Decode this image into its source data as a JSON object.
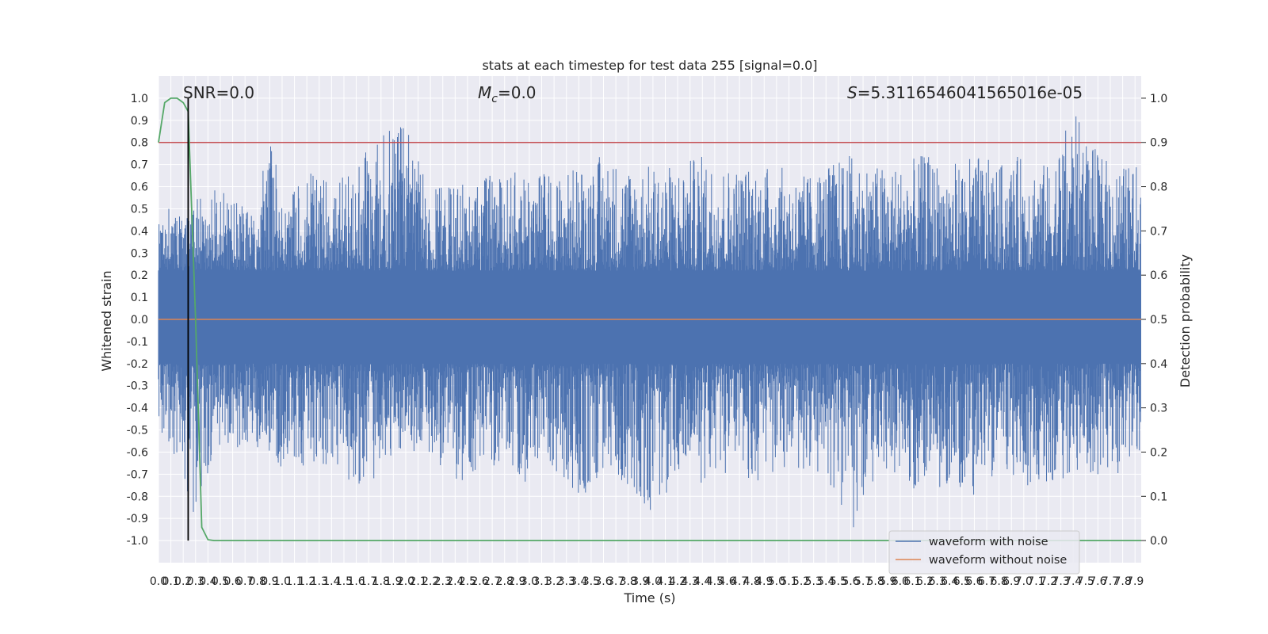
{
  "chart_data": {
    "type": "line",
    "title": "stats at each timestep for test data 255 [signal=0.0]",
    "xlabel": "Time (s)",
    "ylabel": "Whitened strain",
    "y2label": "Detection probability",
    "xlim": [
      0.0,
      7.95
    ],
    "ylim": [
      -1.1,
      1.1
    ],
    "y2lim": [
      -0.05,
      1.05
    ],
    "x_ticks": [
      "0.0",
      "0.1",
      "0.2",
      "0.3",
      "0.4",
      "0.5",
      "0.6",
      "0.7",
      "0.8",
      "0.9",
      "1.0",
      "1.1",
      "1.2",
      "1.3",
      "1.4",
      "1.5",
      "1.6",
      "1.7",
      "1.8",
      "1.9",
      "2.0",
      "2.1",
      "2.2",
      "2.3",
      "2.4",
      "2.5",
      "2.6",
      "2.7",
      "2.8",
      "2.9",
      "3.0",
      "3.1",
      "3.2",
      "3.3",
      "3.4",
      "3.5",
      "3.6",
      "3.7",
      "3.8",
      "3.9",
      "4.0",
      "4.1",
      "4.2",
      "4.3",
      "4.4",
      "4.5",
      "4.6",
      "4.7",
      "4.8",
      "4.9",
      "5.0",
      "5.1",
      "5.2",
      "5.3",
      "5.4",
      "5.5",
      "5.6",
      "5.7",
      "5.8",
      "5.9",
      "6.0",
      "6.1",
      "6.2",
      "6.3",
      "6.4",
      "6.5",
      "6.6",
      "6.7",
      "6.8",
      "6.9",
      "7.0",
      "7.1",
      "7.2",
      "7.3",
      "7.4",
      "7.5",
      "7.6",
      "7.7",
      "7.8",
      "7.9"
    ],
    "y_ticks": [
      "-1.0",
      "-0.9",
      "-0.8",
      "-0.7",
      "-0.6",
      "-0.5",
      "-0.4",
      "-0.3",
      "-0.2",
      "-0.1",
      "0.0",
      "0.1",
      "0.2",
      "0.3",
      "0.4",
      "0.5",
      "0.6",
      "0.7",
      "0.8",
      "0.9",
      "1.0"
    ],
    "y2_ticks": [
      "0.0",
      "0.1",
      "0.2",
      "0.3",
      "0.4",
      "0.5",
      "0.6",
      "0.7",
      "0.8",
      "0.9",
      "1.0"
    ],
    "annotations": {
      "snr": "SNR=0.0",
      "mc_symbol": "M",
      "mc_sub": "c",
      "mc_value": "=0.0",
      "s_symbol": "S",
      "s_value": "=5.3116546041565016e-05"
    },
    "series": [
      {
        "name": "waveform with noise",
        "color": "#4c72b0",
        "note": "dense noise trace, envelope approximated",
        "envelope_x": [
          0.0,
          0.1,
          0.2,
          0.3,
          0.4,
          0.5,
          0.6,
          0.7,
          0.8,
          0.9,
          1.0,
          1.2,
          1.4,
          1.6,
          1.8,
          2.0,
          2.2,
          2.4,
          2.6,
          2.8,
          3.0,
          3.2,
          3.4,
          3.6,
          3.8,
          4.0,
          4.2,
          4.4,
          4.6,
          4.8,
          5.0,
          5.2,
          5.4,
          5.6,
          5.8,
          6.0,
          6.2,
          6.4,
          6.6,
          6.8,
          7.0,
          7.2,
          7.4,
          7.6,
          7.8,
          7.95
        ],
        "envelope_upper": [
          0.45,
          0.55,
          0.5,
          0.55,
          0.6,
          0.65,
          0.55,
          0.5,
          0.45,
          0.95,
          0.5,
          0.7,
          0.6,
          0.7,
          0.85,
          0.88,
          0.6,
          0.6,
          0.65,
          0.65,
          0.7,
          0.65,
          0.7,
          0.75,
          0.7,
          0.7,
          0.7,
          0.75,
          0.7,
          0.7,
          0.7,
          0.65,
          0.7,
          0.75,
          0.7,
          0.7,
          0.75,
          0.7,
          0.75,
          0.7,
          0.75,
          0.7,
          0.95,
          0.75,
          0.7,
          0.7
        ],
        "envelope_lower": [
          -0.5,
          -0.6,
          -0.7,
          -0.95,
          -0.7,
          -0.6,
          -0.6,
          -0.55,
          -0.6,
          -0.6,
          -0.75,
          -0.65,
          -0.7,
          -0.8,
          -0.7,
          -0.6,
          -0.6,
          -0.75,
          -0.7,
          -0.7,
          -0.75,
          -0.7,
          -0.85,
          -0.7,
          -0.75,
          -0.9,
          -0.7,
          -0.75,
          -0.7,
          -0.75,
          -0.7,
          -0.7,
          -0.7,
          -1.0,
          -0.7,
          -0.75,
          -0.8,
          -0.75,
          -0.8,
          -0.7,
          -0.75,
          -0.75,
          -0.7,
          -0.7,
          -0.7,
          -0.6
        ]
      },
      {
        "name": "waveform without noise",
        "color": "#dd8452",
        "x": [
          0.0,
          7.95
        ],
        "y": [
          0.0,
          0.0
        ]
      },
      {
        "name": "",
        "axis": "right",
        "color": "#55a868",
        "x": [
          0.0,
          0.05,
          0.1,
          0.15,
          0.2,
          0.24,
          0.3,
          0.35,
          0.4,
          0.45,
          0.5,
          7.95
        ],
        "y": [
          0.9,
          0.99,
          1.0,
          1.0,
          0.99,
          0.97,
          0.5,
          0.03,
          0.002,
          0.0,
          0.0,
          0.0
        ]
      }
    ],
    "threshold": {
      "axis": "right",
      "value": 0.9,
      "color": "#c44e52"
    },
    "marker_line": {
      "x": 0.24,
      "color": "#000000"
    },
    "legend_position": "lower-right",
    "grid": true
  }
}
